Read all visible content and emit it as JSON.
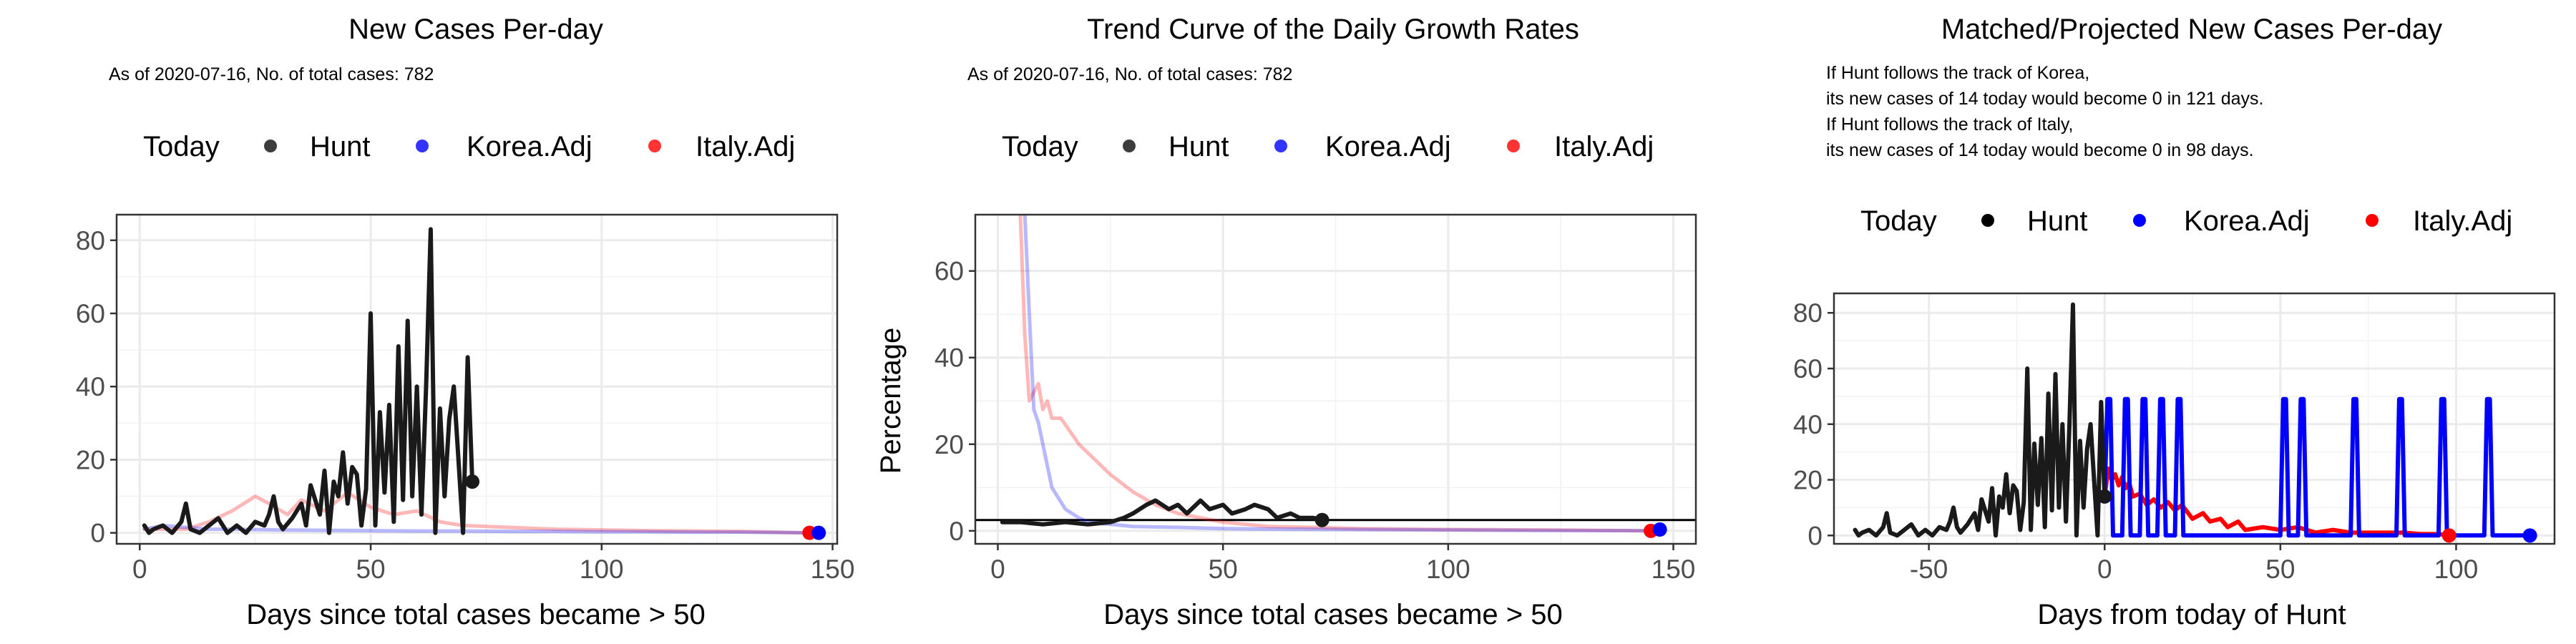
{
  "colors": {
    "hunt": "#1a1a1a",
    "korea": "#0000ff",
    "italy": "#ff0000",
    "grid": "#ebebeb",
    "frame": "#333333"
  },
  "legend": {
    "title": "Today",
    "items": [
      "Hunt",
      "Korea.Adj",
      "Italy.Adj"
    ]
  },
  "chart_data": [
    {
      "id": "p1",
      "type": "line",
      "title": "New Cases Per-day",
      "subtitle": [
        "As of 2020-07-16, No. of total cases: 782"
      ],
      "xlabel": "Days since total cases became > 50",
      "ylabel": "",
      "xlim": [
        -5,
        151
      ],
      "ylim": [
        -3,
        87
      ],
      "xticks": [
        0,
        50,
        100,
        150
      ],
      "yticks": [
        0,
        20,
        40,
        60,
        80
      ],
      "series": [
        {
          "name": "Italy.Adj",
          "color": "#ff0000",
          "opacity": 0.28,
          "width": 5,
          "x": [
            1,
            10,
            15,
            20,
            25,
            28,
            32,
            35,
            40,
            45,
            50,
            55,
            60,
            65,
            70,
            80,
            90,
            100,
            110,
            120,
            130,
            145
          ],
          "y": [
            1,
            1,
            3,
            6,
            10,
            8,
            5,
            9,
            6,
            11,
            7,
            5,
            6,
            3,
            2,
            1.5,
            1,
            0.8,
            0.6,
            0.5,
            0.4,
            0
          ]
        },
        {
          "name": "Korea.Adj",
          "color": "#0000ff",
          "opacity": 0.28,
          "width": 5,
          "x": [
            1,
            5,
            10,
            15,
            20,
            30,
            40,
            50,
            60,
            70,
            80,
            90,
            100,
            110,
            120,
            130,
            147
          ],
          "y": [
            1,
            2,
            1.5,
            1,
            1,
            0.8,
            0.7,
            0.6,
            0.5,
            0.5,
            0.4,
            0.4,
            0.3,
            0.3,
            0.2,
            0.2,
            0
          ]
        },
        {
          "name": "Hunt",
          "color": "#1a1a1a",
          "opacity": 1,
          "width": 6,
          "x": [
            1,
            2,
            3,
            5,
            7,
            9,
            10,
            11,
            13,
            15,
            17,
            19,
            20,
            21,
            23,
            25,
            27,
            28,
            29,
            30,
            31,
            33,
            35,
            36,
            37,
            39,
            40,
            41,
            42,
            43,
            44,
            45,
            46,
            47,
            48,
            49,
            50,
            51,
            52,
            53,
            54,
            55,
            56,
            57,
            58,
            59,
            60,
            61,
            62,
            63,
            64,
            65,
            66,
            67,
            68,
            69,
            70,
            71,
            72
          ],
          "y": [
            2,
            0,
            1,
            2,
            0,
            3,
            8,
            1,
            0,
            2,
            4,
            0,
            1,
            2,
            0,
            3,
            2,
            5,
            10,
            3,
            1,
            4,
            8,
            2,
            13,
            5,
            17,
            0,
            14,
            10,
            22,
            8,
            18,
            16,
            2,
            12,
            60,
            2,
            33,
            11,
            35,
            3,
            51,
            9,
            58,
            10,
            40,
            5,
            40,
            83,
            0,
            34,
            10,
            31,
            40,
            20,
            0,
            48,
            14
          ]
        }
      ],
      "today_points": [
        {
          "name": "Hunt",
          "x": 72,
          "y": 14
        },
        {
          "name": "Italy.Adj",
          "x": 145,
          "y": 0
        },
        {
          "name": "Korea.Adj",
          "x": 147,
          "y": 0
        }
      ]
    },
    {
      "id": "p2",
      "type": "line",
      "title": "Trend Curve of the Daily Growth Rates",
      "subtitle": [
        "As of 2020-07-16, No. of total cases: 782"
      ],
      "xlabel": "Days since total cases became > 50",
      "ylabel": "Percentage",
      "xlim": [
        -5,
        155
      ],
      "ylim": [
        -3,
        73
      ],
      "xticks": [
        0,
        50,
        100,
        150
      ],
      "yticks": [
        0,
        20,
        40,
        60
      ],
      "hline": 2.5,
      "series": [
        {
          "name": "Italy.Adj",
          "color": "#ff0000",
          "opacity": 0.28,
          "width": 5,
          "x": [
            5,
            6,
            7,
            8,
            9,
            10,
            11,
            12,
            14,
            16,
            18,
            20,
            25,
            30,
            35,
            40,
            50,
            60,
            70,
            80,
            100,
            120,
            145
          ],
          "y": [
            73,
            45,
            30,
            32,
            34,
            28,
            30,
            26,
            26,
            23,
            20,
            18,
            13,
            9,
            6,
            4,
            2,
            1,
            0.8,
            0.5,
            0.3,
            0.2,
            0
          ]
        },
        {
          "name": "Korea.Adj",
          "color": "#0000ff",
          "opacity": 0.28,
          "width": 5,
          "x": [
            6,
            7,
            8,
            9,
            10,
            12,
            15,
            18,
            20,
            25,
            30,
            40,
            50,
            60,
            80,
            100,
            120,
            147
          ],
          "y": [
            73,
            50,
            28,
            25,
            20,
            10,
            5,
            3,
            2,
            1.5,
            1,
            0.8,
            0.5,
            0.4,
            0.3,
            0.2,
            0.1,
            0
          ]
        },
        {
          "name": "Hunt",
          "color": "#1a1a1a",
          "opacity": 1,
          "width": 6,
          "x": [
            1,
            5,
            10,
            15,
            20,
            25,
            28,
            30,
            33,
            35,
            38,
            40,
            42,
            45,
            47,
            50,
            52,
            55,
            57,
            60,
            62,
            65,
            67,
            70,
            72
          ],
          "y": [
            2,
            2,
            1.5,
            2,
            1.5,
            2,
            3,
            4,
            6,
            7,
            5,
            6,
            4,
            7,
            5,
            6,
            4,
            5,
            6,
            5,
            3,
            4,
            3,
            3,
            2.5
          ]
        }
      ],
      "today_points": [
        {
          "name": "Hunt",
          "x": 72,
          "y": 2.5
        },
        {
          "name": "Italy.Adj",
          "x": 145,
          "y": 0
        },
        {
          "name": "Korea.Adj",
          "x": 147,
          "y": 0.3
        }
      ]
    },
    {
      "id": "p3",
      "type": "line",
      "title": "Matched/Projected New Cases Per-day",
      "subtitle": [
        "If Hunt follows the track of Korea,",
        "its new cases of 14 today would become 0 in 121 days.",
        "If Hunt follows the track of Italy,",
        "its new cases of 14 today would become 0 in 98 days."
      ],
      "xlabel": "Days from today of Hunt",
      "ylabel": "",
      "xlim": [
        -77,
        128
      ],
      "ylim": [
        -3,
        87
      ],
      "xticks": [
        -50,
        0,
        50,
        100
      ],
      "yticks": [
        0,
        20,
        40,
        60,
        80
      ],
      "series": [
        {
          "name": "Italy.Adj",
          "color": "#ff0000",
          "opacity": 1,
          "width": 6,
          "x": [
            0,
            1,
            2,
            3,
            4,
            5,
            6,
            7,
            8,
            10,
            12,
            14,
            16,
            18,
            20,
            22,
            25,
            28,
            30,
            33,
            35,
            38,
            40,
            45,
            50,
            55,
            60,
            65,
            70,
            75,
            80,
            85,
            90,
            95,
            98
          ],
          "y": [
            14,
            24,
            20,
            22,
            18,
            21,
            17,
            19,
            14,
            15,
            11,
            13,
            10,
            12,
            9,
            11,
            6,
            8,
            5,
            6,
            3,
            5,
            2,
            3,
            2,
            3,
            1,
            2,
            1,
            1,
            1,
            1,
            0.5,
            0.5,
            0
          ]
        },
        {
          "name": "Korea.Adj",
          "color": "#0000ff",
          "opacity": 1,
          "width": 6,
          "x": [
            0,
            0.8,
            1.6,
            2.4,
            5,
            5.8,
            6.6,
            7.4,
            10,
            10.8,
            11.6,
            12.4,
            15,
            15.8,
            16.6,
            17.4,
            20,
            20.8,
            21.6,
            22.4,
            50,
            50.8,
            51.6,
            52.4,
            55,
            55.8,
            56.6,
            57.4,
            70,
            70.8,
            71.6,
            72.4,
            83,
            83.8,
            84.6,
            85.4,
            95,
            95.8,
            96.6,
            97.4,
            108,
            108.8,
            109.6,
            110.4,
            121
          ],
          "y": [
            14,
            49,
            49,
            0,
            0,
            49,
            49,
            0,
            0,
            49,
            49,
            0,
            0,
            49,
            49,
            0,
            0,
            49,
            49,
            0,
            0,
            49,
            49,
            0,
            0,
            49,
            49,
            0,
            0,
            49,
            49,
            0,
            0,
            49,
            49,
            0,
            0,
            49,
            49,
            0,
            0,
            49,
            49,
            0,
            0
          ]
        },
        {
          "name": "Hunt",
          "color": "#1a1a1a",
          "opacity": 1,
          "width": 6,
          "x": [
            -71,
            -70,
            -69,
            -67,
            -65,
            -63,
            -62,
            -61,
            -59,
            -57,
            -55,
            -53,
            -52,
            -51,
            -49,
            -47,
            -45,
            -44,
            -43,
            -42,
            -41,
            -39,
            -37,
            -36,
            -35,
            -33,
            -32,
            -31,
            -30,
            -29,
            -28,
            -27,
            -26,
            -25,
            -24,
            -23,
            -22,
            -21,
            -20,
            -19,
            -18,
            -17,
            -16,
            -15,
            -14,
            -13,
            -12,
            -11,
            -10,
            -9,
            -8,
            -7,
            -6,
            -5,
            -4,
            -3,
            -2,
            -1,
            0
          ],
          "y": [
            2,
            0,
            1,
            2,
            0,
            3,
            8,
            1,
            0,
            2,
            4,
            0,
            1,
            2,
            0,
            3,
            2,
            5,
            10,
            3,
            1,
            4,
            8,
            2,
            13,
            5,
            17,
            0,
            14,
            10,
            22,
            8,
            18,
            16,
            2,
            12,
            60,
            2,
            33,
            11,
            35,
            3,
            51,
            9,
            58,
            10,
            40,
            5,
            40,
            83,
            0,
            34,
            10,
            31,
            40,
            20,
            0,
            48,
            14
          ]
        }
      ],
      "today_points": [
        {
          "name": "Hunt",
          "x": 0,
          "y": 14
        },
        {
          "name": "Italy.Adj",
          "x": 98,
          "y": 0
        },
        {
          "name": "Korea.Adj",
          "x": 121,
          "y": 0
        }
      ]
    }
  ]
}
